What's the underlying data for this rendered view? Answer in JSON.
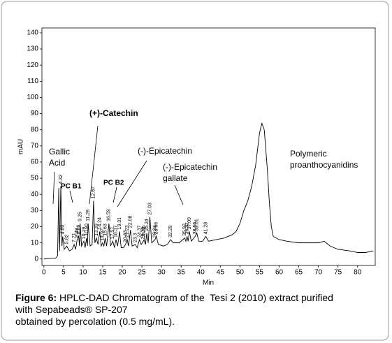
{
  "chart_data": {
    "type": "line",
    "x_label": "Min",
    "y_label": "mAU",
    "color": "#000000",
    "x": [
      0,
      2,
      3,
      3.5,
      3.8,
      4.0,
      4.32,
      4.6,
      4.8,
      5.2,
      5.82,
      6.5,
      7.2,
      7.71,
      8.1,
      8.48,
      8.86,
      9.1,
      9.25,
      9.6,
      10.19,
      10.5,
      10.9,
      11.1,
      11.28,
      11.8,
      12.3,
      12.67,
      13.0,
      13.39,
      13.8,
      14.24,
      14.6,
      14.97,
      15.3,
      15.63,
      16.0,
      16.59,
      17.0,
      17.57,
      18.0,
      18.37,
      18.8,
      19.31,
      19.7,
      20.3,
      20.83,
      21.23,
      21.6,
      22.08,
      22.5,
      23.3,
      23.8,
      24.37,
      24.8,
      25.38,
      25.55,
      25.9,
      26.24,
      26.6,
      27.03,
      27.5,
      28.34,
      28.66,
      29.2,
      30.5,
      31.5,
      32.29,
      33,
      34.5,
      35.92,
      36.2,
      36.51,
      36.8,
      37.09,
      37.6,
      38.56,
      39.01,
      39.5,
      40.5,
      41.28,
      42,
      44,
      46,
      48,
      49,
      50,
      51,
      51.5,
      52,
      53,
      54,
      55,
      55.6,
      56.2,
      57,
      57.5,
      58,
      58.5,
      60,
      62,
      65,
      68,
      70,
      71.5,
      72,
      73,
      75,
      78,
      80,
      82,
      84
    ],
    "values": [
      0,
      0.5,
      0.5,
      2,
      44,
      5,
      45,
      8,
      14,
      6,
      8,
      5,
      6,
      9,
      6,
      12,
      14,
      8,
      22,
      8,
      11,
      7,
      13,
      8,
      22,
      8,
      9,
      36,
      10,
      13,
      9,
      17,
      8,
      10,
      8,
      13,
      8,
      22,
      8,
      11,
      7,
      12,
      8,
      17,
      7,
      7,
      9,
      12,
      8,
      18,
      8,
      9,
      7,
      12,
      9,
      11,
      12,
      9,
      16,
      10,
      26,
      10,
      12,
      14,
      9,
      8,
      9,
      12,
      10,
      10,
      13,
      11,
      14,
      11,
      17,
      11,
      14,
      16,
      11,
      11,
      14,
      11,
      12,
      13,
      15,
      17,
      22,
      30,
      33,
      36,
      45,
      58,
      78,
      84,
      80,
      55,
      35,
      20,
      14,
      12,
      11,
      10,
      10,
      10,
      11,
      10,
      8,
      6,
      5,
      4,
      4,
      5
    ],
    "xlim": [
      -0.5,
      84.5
    ],
    "ylim": [
      -4,
      143
    ],
    "xticks": [
      0,
      5,
      10,
      15,
      20,
      25,
      30,
      35,
      40,
      45,
      50,
      55,
      60,
      65,
      70,
      75,
      80
    ],
    "yticks": [
      0,
      10,
      20,
      30,
      40,
      50,
      60,
      70,
      80,
      90,
      100,
      110,
      120,
      130,
      140
    ],
    "peak_labels": [
      4.32,
      {
        "value": 4.8,
        "label": "4.80"
      },
      5.82,
      7.71,
      8.48,
      8.86,
      9.25,
      10.19,
      {
        "value": 10.9,
        "label": "10.90"
      },
      11.28,
      12.67,
      13.39,
      14.24,
      14.97,
      15.63,
      16.59,
      17.57,
      18.37,
      19.31,
      20.83,
      21.23,
      22.08,
      23.3,
      24.37,
      25.38,
      25.55,
      26.24,
      27.03,
      28.34,
      28.66,
      32.29,
      35.92,
      36.51,
      37.09,
      38.56,
      39.01,
      41.28
    ],
    "annotations": [
      {
        "lines": [
          "Gallic",
          "Acid"
        ]
      },
      {
        "lines": [
          "PC B1"
        ]
      },
      {
        "lines": [
          "(+)-Catechin"
        ]
      },
      {
        "lines": [
          "PC B2"
        ]
      },
      {
        "lines": [
          "(-)-Epicatechin"
        ]
      },
      {
        "lines": [
          "(-)-Epicatechin",
          "gallate"
        ]
      },
      {
        "lines": [
          "Polymeric",
          "proanthocyanidins"
        ]
      }
    ]
  },
  "caption": {
    "label": "Figure 6:",
    "lines": [
      " HPLC-DAD Chromatogram of the  Tesi 2 (2010) extract purified",
      "with Sepabeads® SP-207",
      "obtained by percolation (0.5 mg/mL)."
    ]
  }
}
